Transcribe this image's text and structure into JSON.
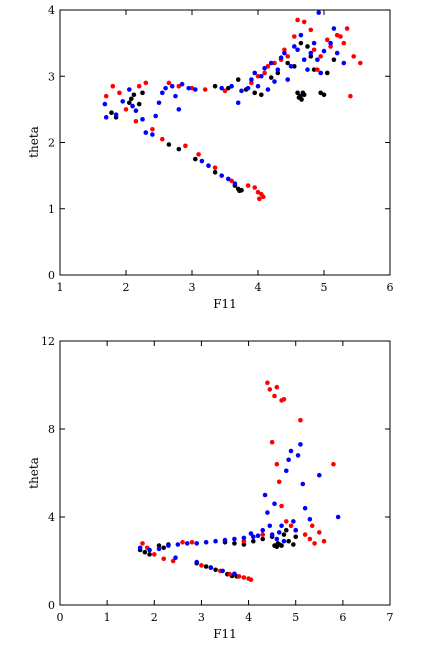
{
  "figure": {
    "background": "#ffffff"
  },
  "chart_data": [
    {
      "type": "scatter",
      "title": "",
      "xlabel": "F11",
      "ylabel": "theta",
      "xlim": [
        1,
        6
      ],
      "ylim": [
        0,
        4
      ],
      "xticks": [
        1,
        2,
        3,
        4,
        5,
        6
      ],
      "yticks": [
        0,
        1,
        2,
        3,
        4
      ],
      "grid": false,
      "series": [
        {
          "color": "#000000",
          "points": [
            [
              1.78,
              2.45
            ],
            [
              1.85,
              2.38
            ],
            [
              2.05,
              2.6
            ],
            [
              2.08,
              2.66
            ],
            [
              2.12,
              2.72
            ],
            [
              2.2,
              2.58
            ],
            [
              2.25,
              2.75
            ],
            [
              2.65,
              1.97
            ],
            [
              2.8,
              1.9
            ],
            [
              3.05,
              1.75
            ],
            [
              3.35,
              1.55
            ],
            [
              3.65,
              1.35
            ],
            [
              3.7,
              1.3
            ],
            [
              3.72,
              1.27
            ],
            [
              3.75,
              1.28
            ],
            [
              3.35,
              2.85
            ],
            [
              3.55,
              2.82
            ],
            [
              3.7,
              2.95
            ],
            [
              3.82,
              2.8
            ],
            [
              3.95,
              2.75
            ],
            [
              4.05,
              2.72
            ],
            [
              4.2,
              2.98
            ],
            [
              4.3,
              3.05
            ],
            [
              4.45,
              3.2
            ],
            [
              4.55,
              3.15
            ],
            [
              4.6,
              2.75
            ],
            [
              4.62,
              2.68
            ],
            [
              4.64,
              2.7
            ],
            [
              4.66,
              2.65
            ],
            [
              4.68,
              2.75
            ],
            [
              4.7,
              2.72
            ],
            [
              4.65,
              3.5
            ],
            [
              4.75,
              3.45
            ],
            [
              4.8,
              3.3
            ],
            [
              4.85,
              3.1
            ],
            [
              4.95,
              2.75
            ],
            [
              5.0,
              2.72
            ],
            [
              5.05,
              3.05
            ],
            [
              5.15,
              3.25
            ]
          ]
        },
        {
          "color": "#ff0000",
          "points": [
            [
              1.7,
              2.7
            ],
            [
              1.8,
              2.85
            ],
            [
              1.9,
              2.75
            ],
            [
              2.0,
              2.5
            ],
            [
              2.15,
              2.32
            ],
            [
              2.2,
              2.85
            ],
            [
              2.3,
              2.9
            ],
            [
              2.4,
              2.2
            ],
            [
              2.55,
              2.05
            ],
            [
              2.65,
              2.9
            ],
            [
              2.8,
              2.85
            ],
            [
              2.9,
              1.95
            ],
            [
              3.0,
              2.82
            ],
            [
              3.1,
              1.82
            ],
            [
              3.2,
              2.8
            ],
            [
              3.35,
              1.62
            ],
            [
              3.5,
              2.78
            ],
            [
              3.6,
              1.42
            ],
            [
              3.85,
              1.35
            ],
            [
              3.95,
              1.32
            ],
            [
              4.0,
              1.25
            ],
            [
              4.02,
              1.15
            ],
            [
              4.05,
              1.22
            ],
            [
              4.08,
              1.18
            ],
            [
              3.9,
              2.9
            ],
            [
              4.0,
              3.0
            ],
            [
              4.1,
              3.05
            ],
            [
              4.15,
              3.15
            ],
            [
              4.25,
              3.2
            ],
            [
              4.35,
              3.25
            ],
            [
              4.45,
              3.3
            ],
            [
              4.55,
              3.6
            ],
            [
              4.6,
              3.85
            ],
            [
              4.7,
              3.82
            ],
            [
              4.8,
              3.7
            ],
            [
              4.85,
              3.4
            ],
            [
              4.95,
              3.3
            ],
            [
              5.05,
              3.55
            ],
            [
              5.1,
              3.45
            ],
            [
              5.2,
              3.62
            ],
            [
              5.3,
              3.5
            ],
            [
              5.35,
              3.72
            ],
            [
              5.45,
              3.3
            ],
            [
              5.55,
              3.2
            ],
            [
              5.4,
              2.7
            ],
            [
              5.25,
              3.6
            ],
            [
              4.9,
              3.1
            ],
            [
              4.4,
              3.4
            ]
          ]
        },
        {
          "color": "#0000ff",
          "points": [
            [
              1.68,
              2.58
            ],
            [
              1.7,
              2.38
            ],
            [
              1.85,
              2.42
            ],
            [
              1.95,
              2.62
            ],
            [
              2.05,
              2.8
            ],
            [
              2.1,
              2.55
            ],
            [
              2.15,
              2.48
            ],
            [
              2.25,
              2.35
            ],
            [
              2.3,
              2.15
            ],
            [
              2.4,
              2.12
            ],
            [
              2.45,
              2.4
            ],
            [
              2.5,
              2.6
            ],
            [
              2.55,
              2.75
            ],
            [
              2.6,
              2.82
            ],
            [
              2.7,
              2.85
            ],
            [
              2.75,
              2.7
            ],
            [
              2.8,
              2.5
            ],
            [
              2.85,
              2.88
            ],
            [
              2.95,
              2.82
            ],
            [
              3.05,
              2.8
            ],
            [
              3.15,
              1.72
            ],
            [
              3.25,
              1.65
            ],
            [
              3.45,
              1.5
            ],
            [
              3.55,
              1.45
            ],
            [
              3.65,
              1.38
            ],
            [
              3.45,
              2.82
            ],
            [
              3.6,
              2.85
            ],
            [
              3.75,
              2.78
            ],
            [
              3.85,
              2.82
            ],
            [
              3.9,
              2.95
            ],
            [
              3.95,
              3.05
            ],
            [
              4.0,
              2.85
            ],
            [
              4.05,
              3.0
            ],
            [
              4.1,
              3.12
            ],
            [
              4.2,
              3.2
            ],
            [
              4.25,
              2.92
            ],
            [
              4.3,
              3.1
            ],
            [
              4.35,
              3.28
            ],
            [
              4.4,
              3.35
            ],
            [
              4.5,
              3.15
            ],
            [
              4.55,
              3.45
            ],
            [
              4.6,
              3.4
            ],
            [
              4.65,
              3.62
            ],
            [
              4.7,
              3.25
            ],
            [
              4.75,
              3.1
            ],
            [
              4.8,
              3.35
            ],
            [
              4.85,
              3.5
            ],
            [
              4.9,
              3.25
            ],
            [
              4.92,
              3.96
            ],
            [
              4.95,
              3.05
            ],
            [
              5.0,
              3.38
            ],
            [
              5.1,
              3.5
            ],
            [
              5.15,
              3.72
            ],
            [
              5.2,
              3.35
            ],
            [
              5.3,
              3.2
            ],
            [
              4.45,
              2.95
            ],
            [
              4.15,
              2.8
            ],
            [
              3.7,
              2.6
            ]
          ]
        }
      ]
    },
    {
      "type": "scatter",
      "title": "",
      "xlabel": "F11",
      "ylabel": "theta",
      "xlim": [
        0,
        7
      ],
      "ylim": [
        0,
        12
      ],
      "xticks": [
        0,
        1,
        2,
        3,
        4,
        5,
        6,
        7
      ],
      "yticks": [
        0,
        4,
        8,
        12
      ],
      "grid": false,
      "series": [
        {
          "color": "#000000",
          "points": [
            [
              1.7,
              2.5
            ],
            [
              1.8,
              2.4
            ],
            [
              1.9,
              2.3
            ],
            [
              2.1,
              2.7
            ],
            [
              2.2,
              2.6
            ],
            [
              2.3,
              2.75
            ],
            [
              2.9,
              1.9
            ],
            [
              3.1,
              1.75
            ],
            [
              3.3,
              1.6
            ],
            [
              3.55,
              1.4
            ],
            [
              3.65,
              1.32
            ],
            [
              3.75,
              1.3
            ],
            [
              3.5,
              2.85
            ],
            [
              3.7,
              2.8
            ],
            [
              3.9,
              2.75
            ],
            [
              4.1,
              2.9
            ],
            [
              4.3,
              3.0
            ],
            [
              4.5,
              3.1
            ],
            [
              4.55,
              2.7
            ],
            [
              4.6,
              2.65
            ],
            [
              4.62,
              2.8
            ],
            [
              4.65,
              2.75
            ],
            [
              4.7,
              2.7
            ],
            [
              4.75,
              3.2
            ],
            [
              4.8,
              3.4
            ],
            [
              4.85,
              2.9
            ],
            [
              4.95,
              2.75
            ],
            [
              5.0,
              3.1
            ]
          ]
        },
        {
          "color": "#ff0000",
          "points": [
            [
              1.75,
              2.8
            ],
            [
              1.85,
              2.6
            ],
            [
              2.0,
              2.3
            ],
            [
              2.2,
              2.1
            ],
            [
              2.4,
              2.0
            ],
            [
              2.6,
              2.85
            ],
            [
              2.8,
              2.85
            ],
            [
              3.0,
              1.8
            ],
            [
              3.2,
              1.7
            ],
            [
              3.4,
              1.55
            ],
            [
              3.6,
              1.4
            ],
            [
              3.8,
              1.3
            ],
            [
              3.9,
              1.25
            ],
            [
              4.0,
              1.2
            ],
            [
              4.05,
              1.15
            ],
            [
              3.9,
              2.9
            ],
            [
              4.1,
              3.1
            ],
            [
              4.3,
              3.2
            ],
            [
              4.4,
              10.1
            ],
            [
              4.45,
              9.8
            ],
            [
              4.55,
              9.5
            ],
            [
              4.6,
              9.9
            ],
            [
              4.7,
              9.3
            ],
            [
              4.75,
              9.35
            ],
            [
              4.5,
              7.4
            ],
            [
              4.6,
              6.4
            ],
            [
              4.65,
              5.6
            ],
            [
              4.7,
              4.5
            ],
            [
              4.8,
              3.8
            ],
            [
              4.9,
              3.6
            ],
            [
              5.0,
              3.4
            ],
            [
              5.1,
              8.4
            ],
            [
              5.2,
              3.2
            ],
            [
              5.3,
              3.0
            ],
            [
              5.4,
              2.8
            ],
            [
              5.6,
              2.9
            ],
            [
              5.8,
              6.4
            ],
            [
              5.5,
              3.3
            ],
            [
              5.35,
              3.6
            ]
          ]
        },
        {
          "color": "#0000ff",
          "points": [
            [
              1.7,
              2.6
            ],
            [
              1.9,
              2.5
            ],
            [
              2.1,
              2.55
            ],
            [
              2.3,
              2.7
            ],
            [
              2.5,
              2.75
            ],
            [
              2.7,
              2.8
            ],
            [
              2.9,
              2.8
            ],
            [
              3.1,
              2.85
            ],
            [
              3.3,
              2.9
            ],
            [
              3.5,
              2.95
            ],
            [
              3.7,
              3.0
            ],
            [
              3.9,
              3.05
            ],
            [
              4.1,
              3.1
            ],
            [
              4.2,
              3.15
            ],
            [
              4.3,
              3.4
            ],
            [
              4.35,
              5.0
            ],
            [
              4.4,
              4.2
            ],
            [
              4.45,
              3.6
            ],
            [
              4.5,
              3.2
            ],
            [
              4.55,
              4.6
            ],
            [
              4.6,
              3.0
            ],
            [
              4.65,
              3.3
            ],
            [
              4.7,
              3.6
            ],
            [
              4.75,
              2.9
            ],
            [
              4.8,
              6.1
            ],
            [
              4.85,
              6.6
            ],
            [
              4.9,
              7.0
            ],
            [
              4.95,
              3.8
            ],
            [
              5.0,
              3.4
            ],
            [
              5.05,
              6.8
            ],
            [
              5.1,
              7.3
            ],
            [
              5.15,
              5.5
            ],
            [
              5.2,
              4.4
            ],
            [
              5.3,
              3.9
            ],
            [
              5.5,
              5.9
            ],
            [
              5.9,
              4.0
            ],
            [
              2.9,
              1.95
            ],
            [
              3.2,
              1.7
            ],
            [
              3.45,
              1.55
            ],
            [
              3.7,
              1.42
            ],
            [
              2.45,
              2.15
            ],
            [
              4.05,
              3.25
            ]
          ]
        }
      ]
    }
  ]
}
